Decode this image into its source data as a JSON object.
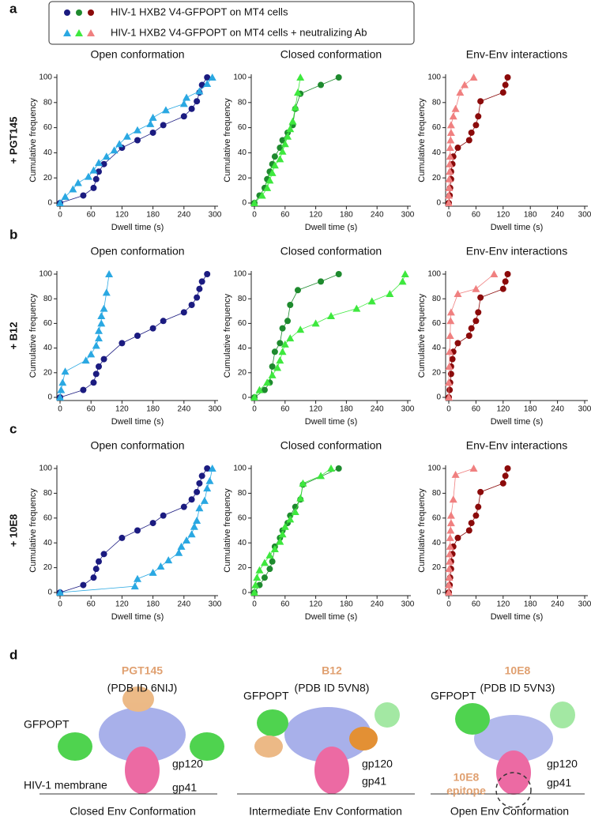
{
  "rows": [
    {
      "letter": "a",
      "antibody": "+ PGT145"
    },
    {
      "letter": "b",
      "antibody": "+ B12"
    },
    {
      "letter": "c",
      "antibody": "+ 10E8"
    }
  ],
  "chart_data": [
    {
      "type": "line",
      "title": "Open conformation",
      "xlabel": "Dwell time (s)",
      "ylabel": "Cumulative frequency",
      "xlim": [
        0,
        300
      ],
      "xticks": [
        0,
        60,
        120,
        180,
        240,
        300
      ],
      "ylim": [
        0,
        100
      ],
      "yticks": [
        0,
        20,
        40,
        60,
        80,
        100
      ],
      "series": [
        {
          "name": "HIV-1 HXB2 V4-GFPOPT on MT4 cells",
          "color": "#1b1b80",
          "marker": "circle",
          "x": [
            0,
            45,
            65,
            70,
            75,
            85,
            120,
            150,
            180,
            200,
            240,
            255,
            265,
            270,
            275,
            285
          ],
          "values": [
            0,
            6,
            12,
            19,
            25,
            31,
            44,
            50,
            56,
            62,
            69,
            75,
            81,
            88,
            94,
            100
          ]
        },
        {
          "name": "HIV-1 HXB2 V4-GFPOPT on MT4 cells + neutralizing Ab",
          "color": "#2aa8e2",
          "marker": "triangle",
          "x": [
            0,
            10,
            25,
            35,
            55,
            65,
            75,
            90,
            105,
            115,
            130,
            150,
            175,
            180,
            205,
            240,
            245,
            270,
            285,
            295
          ],
          "values": [
            0,
            5,
            11,
            16,
            21,
            26,
            32,
            37,
            42,
            47,
            53,
            58,
            63,
            68,
            74,
            79,
            84,
            89,
            95,
            100
          ]
        }
      ]
    },
    {
      "type": "line",
      "title": "Closed conformation",
      "xlabel": "Dwell time (s)",
      "ylabel": "Cumulative frequency",
      "xlim": [
        0,
        300
      ],
      "xticks": [
        0,
        60,
        120,
        180,
        240,
        300
      ],
      "ylim": [
        0,
        100
      ],
      "yticks": [
        0,
        20,
        40,
        60,
        80,
        100
      ],
      "series": [
        {
          "name": "HIV-1 HXB2 V4-GFPOPT on MT4 cells",
          "color": "#1e8a2e",
          "marker": "circle",
          "x": [
            0,
            10,
            20,
            25,
            30,
            35,
            40,
            50,
            55,
            65,
            75,
            80,
            90,
            130,
            165
          ],
          "values": [
            0,
            6,
            12,
            19,
            25,
            31,
            37,
            44,
            50,
            56,
            62,
            75,
            87,
            94,
            100
          ]
        },
        {
          "name": "HIV-1 HXB2 V4-GFPOPT on MT4 cells + neutralizing Ab",
          "color": "#3ee83e",
          "marker": "triangle",
          "x": [
            0,
            15,
            25,
            30,
            35,
            40,
            50,
            55,
            60,
            65,
            70,
            75,
            80,
            85,
            90
          ],
          "values": [
            0,
            6,
            12,
            18,
            24,
            30,
            35,
            41,
            47,
            53,
            59,
            65,
            76,
            88,
            100
          ]
        }
      ]
    },
    {
      "type": "line",
      "title": "Env-Env interactions",
      "xlabel": "Dwell time (s)",
      "ylabel": "Cumulative frequency",
      "xlim": [
        0,
        300
      ],
      "xticks": [
        0,
        60,
        120,
        180,
        240,
        300
      ],
      "ylim": [
        0,
        100
      ],
      "yticks": [
        0,
        20,
        40,
        60,
        80,
        100
      ],
      "series": [
        {
          "name": "HIV-1 HXB2 V4-GFPOPT on MT4 cells",
          "color": "#8b0a0a",
          "marker": "circle",
          "x": [
            0,
            2,
            3,
            5,
            5,
            8,
            10,
            20,
            45,
            50,
            60,
            65,
            70,
            120,
            125,
            130
          ],
          "values": [
            0,
            6,
            12,
            19,
            25,
            31,
            37,
            44,
            50,
            56,
            62,
            69,
            81,
            88,
            94,
            100
          ]
        },
        {
          "name": "HIV-1 HXB2 V4-GFPOPT on MT4 cells + neutralizing Ab",
          "color": "#f08080",
          "marker": "triangle",
          "x": [
            0,
            0,
            1,
            1,
            2,
            2,
            3,
            3,
            4,
            5,
            5,
            10,
            15,
            25,
            35,
            55
          ],
          "values": [
            0,
            6,
            12,
            19,
            25,
            31,
            37,
            44,
            50,
            56,
            62,
            69,
            75,
            88,
            94,
            100
          ]
        }
      ]
    },
    {
      "type": "line",
      "title": "Open conformation",
      "xlabel": "Dwell time (s)",
      "ylabel": "Cumulative frequency",
      "xlim": [
        0,
        300
      ],
      "xticks": [
        0,
        60,
        120,
        180,
        240,
        300
      ],
      "ylim": [
        0,
        100
      ],
      "yticks": [
        0,
        20,
        40,
        60,
        80,
        100
      ],
      "series": [
        {
          "name": "HIV-1 HXB2 V4-GFPOPT on MT4 cells",
          "color": "#1b1b80",
          "marker": "circle",
          "x": [
            0,
            45,
            65,
            70,
            75,
            85,
            120,
            150,
            180,
            200,
            240,
            255,
            265,
            270,
            275,
            285
          ],
          "values": [
            0,
            6,
            12,
            19,
            25,
            31,
            44,
            50,
            56,
            62,
            69,
            75,
            81,
            88,
            94,
            100
          ]
        },
        {
          "name": "HIV-1 HXB2 V4-GFPOPT on MT4 cells + neutralizing Ab",
          "color": "#2aa8e2",
          "marker": "triangle",
          "x": [
            0,
            2,
            5,
            10,
            50,
            60,
            70,
            75,
            75,
            80,
            80,
            85,
            90,
            95
          ],
          "values": [
            0,
            6,
            12,
            21,
            30,
            35,
            42,
            48,
            54,
            60,
            66,
            72,
            85,
            100
          ]
        }
      ]
    },
    {
      "type": "line",
      "title": "Closed conformation",
      "xlabel": "Dwell time (s)",
      "ylabel": "Cumulative frequency",
      "xlim": [
        0,
        300
      ],
      "xticks": [
        0,
        60,
        120,
        180,
        240,
        300
      ],
      "ylim": [
        0,
        100
      ],
      "yticks": [
        0,
        20,
        40,
        60,
        80,
        100
      ],
      "series": [
        {
          "name": "HIV-1 HXB2 V4-GFPOPT on MT4 cells",
          "color": "#1e8a2e",
          "marker": "circle",
          "x": [
            0,
            20,
            30,
            35,
            40,
            50,
            55,
            65,
            70,
            85,
            130,
            165
          ],
          "values": [
            0,
            6,
            12,
            25,
            37,
            44,
            56,
            62,
            75,
            87,
            94,
            100
          ]
        },
        {
          "name": "HIV-1 HXB2 V4-GFPOPT on MT4 cells + neutralizing Ab",
          "color": "#3ee83e",
          "marker": "triangle",
          "x": [
            0,
            10,
            25,
            35,
            45,
            50,
            55,
            60,
            70,
            90,
            120,
            150,
            200,
            230,
            265,
            290,
            295
          ],
          "values": [
            0,
            6,
            12,
            18,
            24,
            30,
            37,
            43,
            48,
            55,
            60,
            66,
            72,
            78,
            84,
            94,
            100
          ]
        }
      ]
    },
    {
      "type": "line",
      "title": "Env-Env interactions",
      "xlabel": "Dwell time (s)",
      "ylabel": "Cumulative frequency",
      "xlim": [
        0,
        300
      ],
      "xticks": [
        0,
        60,
        120,
        180,
        240,
        300
      ],
      "ylim": [
        0,
        100
      ],
      "yticks": [
        0,
        20,
        40,
        60,
        80,
        100
      ],
      "series": [
        {
          "name": "HIV-1 HXB2 V4-GFPOPT on MT4 cells",
          "color": "#8b0a0a",
          "marker": "circle",
          "x": [
            0,
            2,
            3,
            5,
            5,
            8,
            10,
            20,
            45,
            50,
            60,
            65,
            70,
            120,
            125,
            130
          ],
          "values": [
            0,
            6,
            12,
            19,
            25,
            31,
            37,
            44,
            50,
            56,
            62,
            69,
            81,
            88,
            94,
            100
          ]
        },
        {
          "name": "HIV-1 HXB2 V4-GFPOPT on MT4 cells + neutralizing Ab",
          "color": "#f08080",
          "marker": "triangle",
          "x": [
            0,
            0,
            1,
            2,
            3,
            4,
            5,
            20,
            60,
            100
          ],
          "values": [
            0,
            12,
            25,
            37,
            50,
            62,
            69,
            84,
            88,
            100
          ]
        }
      ]
    },
    {
      "type": "line",
      "title": "Open conformation",
      "xlabel": "Dwell time (s)",
      "ylabel": "Cumulative frequency",
      "xlim": [
        0,
        300
      ],
      "xticks": [
        0,
        60,
        120,
        180,
        240,
        300
      ],
      "ylim": [
        0,
        100
      ],
      "yticks": [
        0,
        20,
        40,
        60,
        80,
        100
      ],
      "series": [
        {
          "name": "HIV-1 HXB2 V4-GFPOPT on MT4 cells",
          "color": "#1b1b80",
          "marker": "circle",
          "x": [
            0,
            45,
            65,
            70,
            75,
            85,
            120,
            150,
            180,
            200,
            240,
            255,
            265,
            270,
            275,
            285
          ],
          "values": [
            0,
            6,
            12,
            19,
            25,
            31,
            44,
            50,
            56,
            62,
            69,
            75,
            81,
            88,
            94,
            100
          ]
        },
        {
          "name": "HIV-1 HXB2 V4-GFPOPT on MT4 cells + neutralizing Ab",
          "color": "#2aa8e2",
          "marker": "triangle",
          "x": [
            0,
            145,
            150,
            180,
            195,
            210,
            230,
            235,
            245,
            255,
            260,
            265,
            270,
            280,
            285,
            290,
            295
          ],
          "values": [
            0,
            5,
            11,
            16,
            21,
            26,
            32,
            37,
            42,
            47,
            53,
            58,
            68,
            74,
            84,
            90,
            100
          ]
        }
      ]
    },
    {
      "type": "line",
      "title": "Closed conformation",
      "xlabel": "Dwell time (s)",
      "ylabel": "Cumulative frequency",
      "xlim": [
        0,
        300
      ],
      "xticks": [
        0,
        60,
        120,
        180,
        240,
        300
      ],
      "ylim": [
        0,
        100
      ],
      "yticks": [
        0,
        20,
        40,
        60,
        80,
        100
      ],
      "series": [
        {
          "name": "HIV-1 HXB2 V4-GFPOPT on MT4 cells",
          "color": "#1e8a2e",
          "marker": "circle",
          "x": [
            0,
            10,
            20,
            30,
            35,
            40,
            50,
            55,
            65,
            70,
            80,
            90,
            95,
            165
          ],
          "values": [
            0,
            6,
            12,
            19,
            25,
            37,
            44,
            50,
            56,
            62,
            69,
            75,
            87,
            100
          ]
        },
        {
          "name": "HIV-1 HXB2 V4-GFPOPT on MT4 cells + neutralizing Ab",
          "color": "#3ee83e",
          "marker": "triangle",
          "x": [
            0,
            2,
            5,
            10,
            20,
            30,
            40,
            50,
            55,
            60,
            70,
            80,
            90,
            95,
            130,
            150
          ],
          "values": [
            0,
            6,
            12,
            18,
            24,
            30,
            35,
            41,
            47,
            53,
            59,
            65,
            76,
            88,
            94,
            100
          ]
        }
      ]
    },
    {
      "type": "line",
      "title": "Env-Env interactions",
      "xlabel": "Dwell time (s)",
      "ylabel": "Cumulative frequency",
      "xlim": [
        0,
        300
      ],
      "xticks": [
        0,
        60,
        120,
        180,
        240,
        300
      ],
      "ylim": [
        0,
        100
      ],
      "yticks": [
        0,
        20,
        40,
        60,
        80,
        100
      ],
      "series": [
        {
          "name": "HIV-1 HXB2 V4-GFPOPT on MT4 cells",
          "color": "#8b0a0a",
          "marker": "circle",
          "x": [
            0,
            2,
            3,
            5,
            5,
            8,
            10,
            20,
            45,
            50,
            60,
            65,
            70,
            120,
            125,
            130
          ],
          "values": [
            0,
            6,
            12,
            19,
            25,
            31,
            37,
            44,
            50,
            56,
            62,
            69,
            81,
            88,
            94,
            100
          ]
        },
        {
          "name": "HIV-1 HXB2 V4-GFPOPT on MT4 cells + neutralizing Ab",
          "color": "#f08080",
          "marker": "triangle",
          "x": [
            0,
            0,
            1,
            1,
            2,
            2,
            3,
            3,
            4,
            5,
            5,
            10,
            15,
            55
          ],
          "values": [
            0,
            6,
            12,
            19,
            25,
            31,
            37,
            44,
            50,
            56,
            62,
            75,
            95,
            100
          ]
        }
      ]
    }
  ],
  "panel_d": {
    "letter": "d",
    "gfp_label": "GFPOPT",
    "gp120": "gp120",
    "gp41": "gp41",
    "membrane": "HIV-1 membrane",
    "epitope_label": [
      "10E8",
      "epitope"
    ],
    "structures": [
      {
        "antibody": "PGT145",
        "pdb": "(PDB ID 6NIJ)",
        "caption": "Closed Env Conformation"
      },
      {
        "antibody": "B12",
        "pdb": "(PDB ID 5VN8)",
        "caption": "Intermediate Env Conformation"
      },
      {
        "antibody": "10E8",
        "pdb": "(PDB ID 5VN3)",
        "caption": "Open Env Conformation"
      }
    ]
  }
}
